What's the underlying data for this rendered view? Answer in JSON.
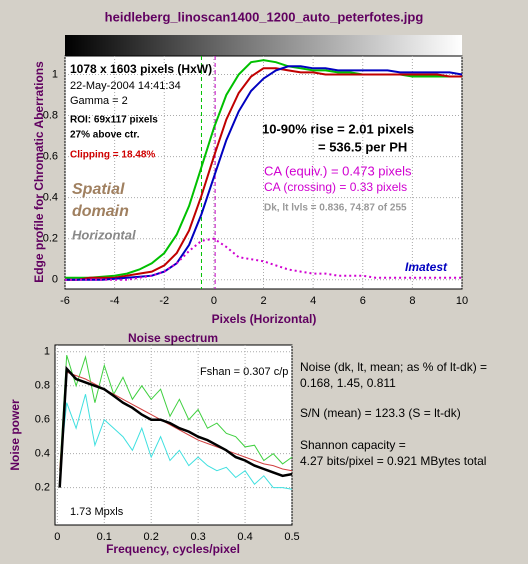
{
  "chart_data": [
    {
      "type": "line",
      "title": "heidleberg_linoscan1400_1200_auto_peterfotes.jpg",
      "xlabel": "Pixels (Horizontal)",
      "ylabel": "Edge profile for Chromatic Aberrations",
      "x": [
        -6,
        -5.5,
        -5,
        -4.5,
        -4,
        -3.5,
        -3,
        -2.5,
        -2,
        -1.5,
        -1,
        -0.5,
        0,
        0.5,
        1,
        1.5,
        2,
        2.5,
        3,
        3.5,
        4,
        4.5,
        5,
        5.5,
        6,
        6.5,
        7,
        7.5,
        8,
        8.5,
        9,
        9.5,
        10
      ],
      "series": [
        {
          "color": "#00c000",
          "width": 2,
          "values": [
            0.01,
            0.01,
            0.01,
            0.015,
            0.02,
            0.03,
            0.05,
            0.08,
            0.13,
            0.22,
            0.36,
            0.55,
            0.74,
            0.9,
            1.0,
            1.06,
            1.07,
            1.06,
            1.04,
            1.03,
            1.02,
            1.02,
            1.01,
            1.01,
            1.0,
            1.0,
            1.0,
            1.0,
            0.99,
            0.99,
            0.99,
            0.99,
            0.99
          ]
        },
        {
          "color": "#c00000",
          "width": 2,
          "values": [
            0,
            0,
            0.01,
            0.01,
            0.01,
            0.02,
            0.03,
            0.04,
            0.07,
            0.13,
            0.24,
            0.41,
            0.6,
            0.78,
            0.91,
            0.99,
            1.03,
            1.03,
            1.02,
            1.01,
            1.01,
            1.0,
            1.0,
            1.0,
            1.0,
            1.0,
            1.0,
            1.0,
            1.0,
            1.0,
            1.0,
            0.99,
            0.99
          ]
        },
        {
          "color": "#0000c0",
          "width": 2,
          "values": [
            0,
            0,
            0,
            0,
            0.005,
            0.01,
            0.015,
            0.02,
            0.04,
            0.08,
            0.17,
            0.32,
            0.5,
            0.68,
            0.82,
            0.92,
            0.98,
            1.02,
            1.04,
            1.04,
            1.03,
            1.03,
            1.02,
            1.02,
            1.02,
            1.02,
            1.02,
            1.01,
            1.01,
            1.01,
            1.01,
            1.01,
            1.0
          ]
        },
        {
          "color": "#d000d0",
          "width": 2,
          "dash": "2,3",
          "values": [
            0,
            0,
            0,
            0,
            0,
            0,
            0.01,
            0.02,
            0.04,
            0.08,
            0.14,
            0.19,
            0.2,
            0.16,
            0.11,
            0.1,
            0.09,
            0.07,
            0.05,
            0.04,
            0.03,
            0.03,
            0.02,
            0.02,
            0.02,
            0.01,
            0.01,
            0.01,
            0.01,
            0.01,
            0.01,
            0.01,
            0.01
          ]
        }
      ],
      "vlines": [
        {
          "x": -0.5,
          "color": "#00c000"
        },
        {
          "x": 0.05,
          "color": "#c000c0"
        }
      ],
      "xlim": [
        -6,
        10
      ],
      "xticks": [
        -6,
        -4,
        -2,
        0,
        2,
        4,
        6,
        8,
        10
      ],
      "ylim": [
        -0.045,
        1.09
      ],
      "yticks": [
        0,
        0.2,
        0.4,
        0.6,
        0.8,
        1
      ],
      "grid": true,
      "annotations": [
        "1078 x 1603 pixels (HxW)",
        "22-May-2004 14:41:34",
        "Gamma = 2",
        "ROI: 69x117 pixels",
        "27% above ctr.",
        "Clipping = 18.48%",
        "Spatial",
        "domain",
        "Horizontal",
        "10-90% rise = 2.01 pixels",
        "= 536.5 per PH",
        "CA (equiv.) = 0.473 pixels",
        "CA (crossing) = 0.33 pixels",
        "Dk, lt lvls = 0.836, 74.87 of 255",
        "Imatest"
      ]
    },
    {
      "type": "line",
      "title": "Noise spectrum",
      "xlabel": "Frequency, cycles/pixel",
      "ylabel": "Noise power",
      "x": [
        0.005,
        0.02,
        0.04,
        0.06,
        0.08,
        0.1,
        0.12,
        0.14,
        0.16,
        0.18,
        0.2,
        0.22,
        0.24,
        0.26,
        0.28,
        0.3,
        0.32,
        0.34,
        0.36,
        0.38,
        0.4,
        0.42,
        0.44,
        0.46,
        0.48,
        0.5
      ],
      "series": [
        {
          "color": "#40e0e0",
          "width": 1,
          "values": [
            0.3,
            0.7,
            0.55,
            0.75,
            0.45,
            0.6,
            0.55,
            0.5,
            0.42,
            0.55,
            0.38,
            0.5,
            0.36,
            0.42,
            0.33,
            0.38,
            0.33,
            0.3,
            0.32,
            0.26,
            0.3,
            0.22,
            0.27,
            0.2,
            0.2,
            0.19
          ]
        },
        {
          "color": "#40d040",
          "width": 1,
          "values": [
            0.3,
            0.98,
            0.8,
            0.97,
            0.7,
            0.92,
            0.75,
            0.85,
            0.72,
            0.8,
            0.72,
            0.78,
            0.62,
            0.72,
            0.6,
            0.66,
            0.55,
            0.58,
            0.52,
            0.5,
            0.44,
            0.45,
            0.36,
            0.4,
            0.34,
            0.38
          ]
        },
        {
          "color": "#d04040",
          "width": 1,
          "values": [
            0.3,
            0.88,
            0.86,
            0.84,
            0.81,
            0.78,
            0.75,
            0.72,
            0.69,
            0.66,
            0.63,
            0.6,
            0.57,
            0.54,
            0.51,
            0.48,
            0.46,
            0.44,
            0.42,
            0.4,
            0.38,
            0.36,
            0.34,
            0.33,
            0.31,
            0.3
          ]
        },
        {
          "color": "#000000",
          "width": 2.5,
          "values": [
            0.2,
            0.9,
            0.84,
            0.82,
            0.8,
            0.78,
            0.74,
            0.7,
            0.67,
            0.63,
            0.6,
            0.6,
            0.58,
            0.55,
            0.53,
            0.5,
            0.48,
            0.45,
            0.42,
            0.38,
            0.36,
            0.33,
            0.31,
            0.29,
            0.27,
            0.28
          ]
        }
      ],
      "xlim": [
        -0.005,
        0.5
      ],
      "xticks": [
        0,
        0.1,
        0.2,
        0.3,
        0.4,
        0.5
      ],
      "ylim": [
        -0.02,
        1.04
      ],
      "yticks": [
        0.2,
        0.4,
        0.6,
        0.8,
        1
      ],
      "grid": true,
      "annotations": [
        "Fshan = 0.307 c/p",
        "1.73 Mpxls",
        "Noise (dk, lt, mean; as % of lt-dk) =",
        "0.168,  1.45,  0.811",
        "S/N (mean) = 123.3  (S = lt-dk)",
        "Shannon capacity =",
        "4.27 bits/pixel = 0.921 MBytes total"
      ]
    }
  ]
}
